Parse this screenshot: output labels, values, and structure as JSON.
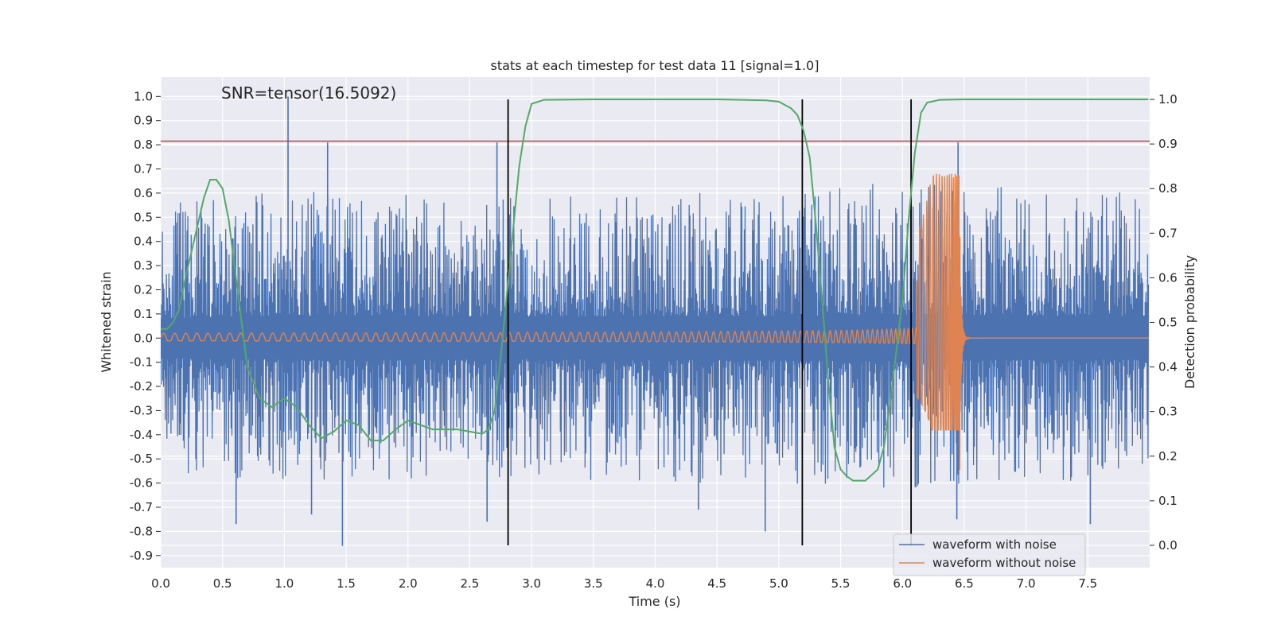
{
  "chart_data": {
    "type": "line",
    "title": "stats at each timestep for test data 11 [signal=1.0]",
    "annotation": "SNR=tensor(16.5092)",
    "xlabel": "Time (s)",
    "ylabel_left": "Whitened strain",
    "ylabel_right": "Detection probability",
    "xlim": [
      0.0,
      8.0
    ],
    "ylim_left": [
      -0.95,
      1.08
    ],
    "ylim_right": [
      -0.05,
      1.05
    ],
    "xticks": [
      "0.0",
      "0.5",
      "1.0",
      "1.5",
      "2.0",
      "2.5",
      "3.0",
      "3.5",
      "4.0",
      "4.5",
      "5.0",
      "5.5",
      "6.0",
      "6.5",
      "7.0",
      "7.5"
    ],
    "yticks_left": [
      "1.0",
      "0.9",
      "0.8",
      "0.7",
      "0.6",
      "0.5",
      "0.4",
      "0.3",
      "0.2",
      "0.1",
      "0.0",
      "-0.1",
      "-0.2",
      "-0.3",
      "-0.4",
      "-0.5",
      "-0.6",
      "-0.7",
      "-0.8",
      "-0.9"
    ],
    "yticks_right": [
      "1.0",
      "0.9",
      "0.8",
      "0.7",
      "0.6",
      "0.5",
      "0.4",
      "0.3",
      "0.2",
      "0.1",
      "0.0"
    ],
    "grid": true,
    "legend_position": "bottom-right",
    "threshold_line": {
      "value": 0.815,
      "axis": "left",
      "color": "#c44e52"
    },
    "vertical_lines": [
      2.81,
      5.19,
      6.07
    ],
    "series": [
      {
        "name": "waveform with noise",
        "color": "#4c72b0",
        "axis": "left",
        "envelope_x": [
          0.0,
          1.0,
          2.0,
          3.0,
          4.0,
          5.0,
          6.0,
          7.0,
          7.99
        ],
        "envelope_upper": [
          0.55,
          0.62,
          0.6,
          0.58,
          0.6,
          0.6,
          0.65,
          0.62,
          0.6
        ],
        "envelope_lower": [
          -0.55,
          -0.6,
          -0.6,
          -0.58,
          -0.6,
          -0.62,
          -0.62,
          -0.6,
          -0.58
        ],
        "spikes": [
          {
            "x": 1.03,
            "y": 1.0
          },
          {
            "x": 1.35,
            "y": 0.81
          },
          {
            "x": 2.72,
            "y": 0.81
          },
          {
            "x": 6.45,
            "y": 0.81
          },
          {
            "x": 1.47,
            "y": -0.86
          },
          {
            "x": 1.22,
            "y": -0.73
          },
          {
            "x": 0.61,
            "y": -0.77
          },
          {
            "x": 2.64,
            "y": -0.76
          },
          {
            "x": 4.89,
            "y": -0.8
          },
          {
            "x": 7.52,
            "y": -0.77
          },
          {
            "x": 4.35,
            "y": -0.71
          },
          {
            "x": 6.44,
            "y": -0.75
          }
        ]
      },
      {
        "name": "waveform without noise",
        "color": "#dd8452",
        "axis": "left",
        "chirp": {
          "start": 0.0,
          "merger": 6.46,
          "end": 7.99,
          "initial_amplitude": 0.02,
          "peak_amplitude": 0.68,
          "peak_trough": -0.38
        }
      },
      {
        "name": "detection probability",
        "color": "#55a868",
        "axis": "right",
        "x": [
          0.0,
          0.05,
          0.1,
          0.15,
          0.2,
          0.3,
          0.35,
          0.4,
          0.45,
          0.5,
          0.55,
          0.6,
          0.7,
          0.8,
          0.9,
          1.0,
          1.1,
          1.2,
          1.3,
          1.4,
          1.5,
          1.6,
          1.7,
          1.8,
          1.9,
          2.0,
          2.1,
          2.2,
          2.3,
          2.4,
          2.5,
          2.6,
          2.65,
          2.7,
          2.75,
          2.8,
          2.9,
          2.95,
          3.0,
          3.1,
          3.5,
          4.0,
          4.5,
          4.9,
          5.0,
          5.1,
          5.15,
          5.2,
          5.25,
          5.3,
          5.35,
          5.4,
          5.45,
          5.5,
          5.55,
          5.6,
          5.7,
          5.8,
          5.85,
          5.9,
          6.0,
          6.05,
          6.1,
          6.15,
          6.2,
          6.3,
          6.5,
          7.0,
          7.5,
          7.99
        ],
        "y": [
          0.485,
          0.485,
          0.5,
          0.53,
          0.6,
          0.72,
          0.78,
          0.82,
          0.82,
          0.8,
          0.73,
          0.62,
          0.4,
          0.33,
          0.31,
          0.33,
          0.31,
          0.27,
          0.24,
          0.255,
          0.28,
          0.27,
          0.235,
          0.235,
          0.26,
          0.28,
          0.27,
          0.26,
          0.26,
          0.26,
          0.255,
          0.25,
          0.26,
          0.3,
          0.42,
          0.56,
          0.85,
          0.94,
          0.99,
          0.999,
          1.0,
          1.0,
          1.0,
          0.998,
          0.995,
          0.98,
          0.965,
          0.93,
          0.87,
          0.72,
          0.55,
          0.37,
          0.22,
          0.17,
          0.155,
          0.145,
          0.145,
          0.17,
          0.22,
          0.32,
          0.55,
          0.73,
          0.88,
          0.97,
          0.993,
          0.999,
          1.0,
          1.0,
          1.0,
          1.0
        ]
      }
    ]
  }
}
